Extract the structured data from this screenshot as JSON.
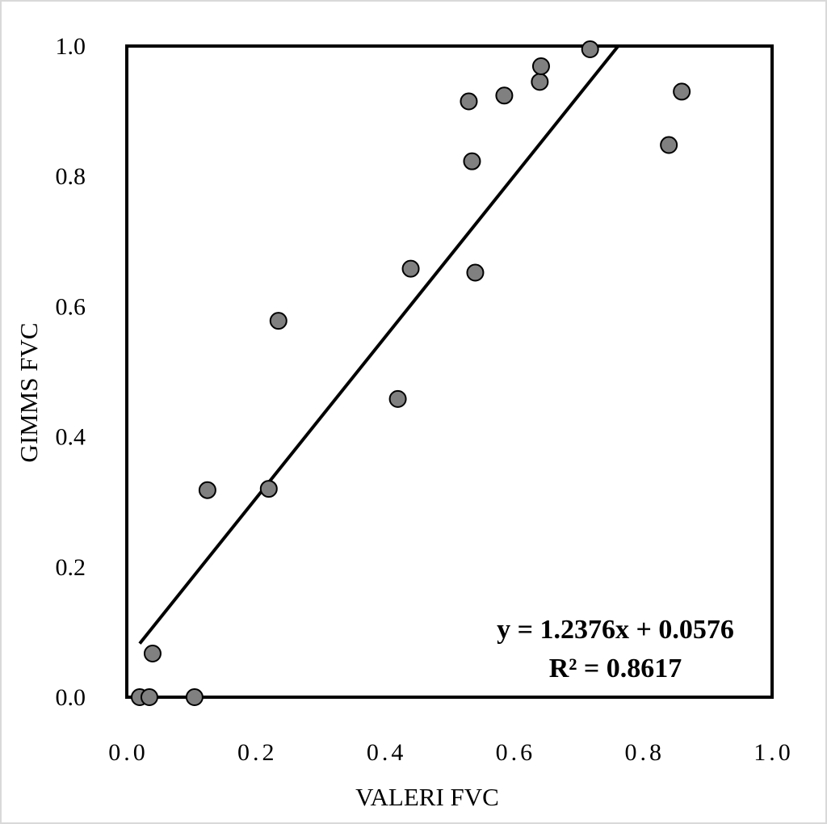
{
  "chart_data": {
    "type": "scatter",
    "title": "",
    "xlabel": "VALERI FVC",
    "ylabel": "GIMMS FVC",
    "xlim": [
      0.0,
      1.0
    ],
    "ylim": [
      0.0,
      1.0
    ],
    "x_ticks": [
      "0.0",
      "0.2",
      "0.4",
      "0.6",
      "0.8",
      "1.0"
    ],
    "y_ticks": [
      "0.0",
      "0.2",
      "0.4",
      "0.6",
      "0.8",
      "1.0"
    ],
    "grid": false,
    "legend": "none",
    "marker_color": "#808080",
    "marker_edge_color": "#000000",
    "line_color": "#000000",
    "series": [
      {
        "x": [
          0.02,
          0.035,
          0.105,
          0.04,
          0.125,
          0.22,
          0.235,
          0.42,
          0.44,
          0.54,
          0.535,
          0.53,
          0.585,
          0.64,
          0.642,
          0.718,
          0.86,
          0.84
        ],
        "y": [
          0.0,
          0.0,
          0.0,
          0.067,
          0.318,
          0.32,
          0.578,
          0.458,
          0.658,
          0.652,
          0.823,
          0.915,
          0.924,
          0.945,
          0.969,
          0.995,
          0.93,
          0.848
        ]
      }
    ],
    "trendline": {
      "slope": 1.2376,
      "intercept": 0.0576,
      "x_range": [
        0.02,
        0.761
      ],
      "equation": "y = 1.2376x + 0.0576",
      "r2": "R² = 0.8617"
    }
  }
}
